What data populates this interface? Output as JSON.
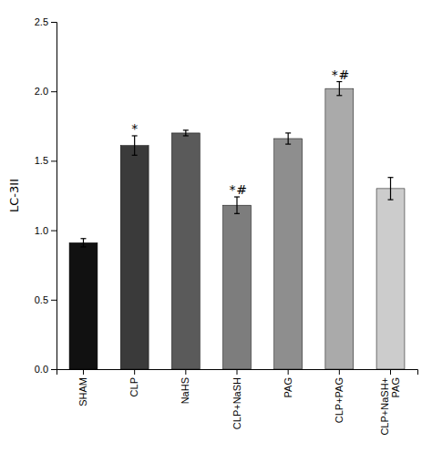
{
  "chart_data": {
    "type": "bar",
    "categories": [
      "SHAM",
      "CLP",
      "NaHS",
      "CLP+NaSH",
      "PAG",
      "CLP+PAG",
      "CLP+NaSH+\nPAG"
    ],
    "values": [
      0.91,
      1.61,
      1.7,
      1.18,
      1.66,
      2.02,
      1.3
    ],
    "errors": [
      0.03,
      0.07,
      0.02,
      0.06,
      0.04,
      0.05,
      0.08
    ],
    "colors": [
      "#111111",
      "#3a3a3a",
      "#5a5a5a",
      "#7d7d7d",
      "#8e8e8e",
      "#aaaaaa",
      "#cccccc"
    ],
    "annotations": [
      {
        "category": "CLP",
        "text": "*"
      },
      {
        "category": "CLP+NaSH",
        "text": "*"
      },
      {
        "category": "CLP+NaSH",
        "text": "#"
      },
      {
        "category": "CLP+PAG",
        "text": "*"
      },
      {
        "category": "CLP+PAG",
        "text": "#"
      }
    ],
    "ylabel": "LC-3II",
    "ylim": [
      0,
      2.5
    ],
    "yticks": [
      {
        "value": 0.0,
        "label": "0.0"
      },
      0.5,
      {
        "value": 1.0,
        "label": "1.0"
      },
      1.5,
      {
        "value": 2.0,
        "label": "2.0"
      },
      2.5
    ],
    "grid": false
  }
}
